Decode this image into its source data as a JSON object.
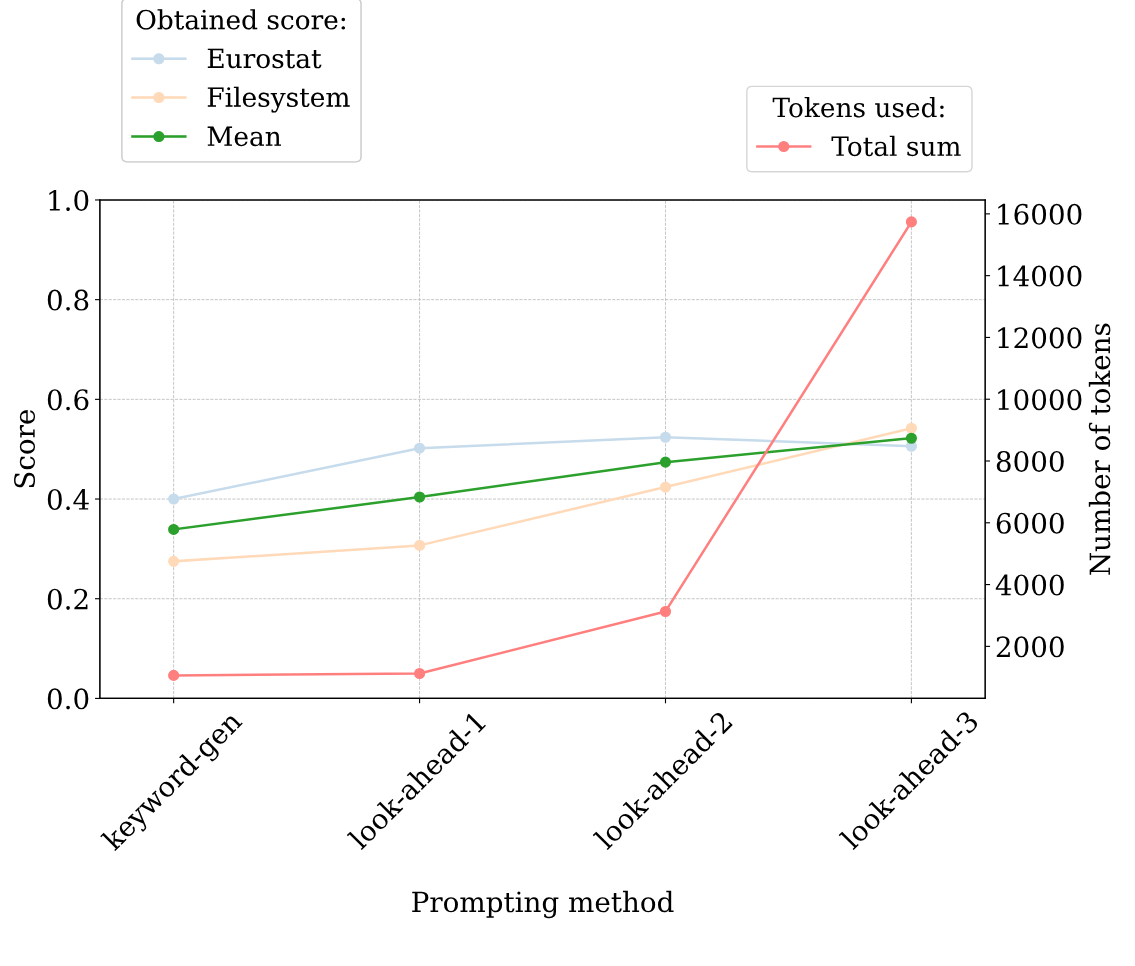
{
  "chart_data": {
    "type": "line",
    "xlabel": "Prompting method",
    "ylabel": "Score",
    "y2label": "Number of tokens",
    "categories": [
      "keyword-gen",
      "look-ahead-1",
      "look-ahead-2",
      "look-ahead-3"
    ],
    "series": [
      {
        "name": "Eurostat",
        "color": "#c6dbeb",
        "values": [
          0.4,
          0.502,
          0.524,
          0.506
        ]
      },
      {
        "name": "Filesystem",
        "color": "#ffd9b8",
        "values": [
          0.275,
          0.307,
          0.424,
          0.542
        ]
      },
      {
        "name": "Mean",
        "color": "#2ca02c",
        "values": [
          0.339,
          0.404,
          0.474,
          0.522
        ]
      },
      {
        "name": "Total sum",
        "color": "#ff7f7f",
        "axis": "y2",
        "values": [
          1060,
          1120,
          3130,
          15740
        ]
      }
    ],
    "legend_title": [
      "Obtained score:",
      "Tokens used:"
    ],
    "ylim": [
      0,
      1
    ],
    "yticks": [
      {
        "value": 0,
        "label": "0.0"
      },
      0.2,
      0.4,
      0.6,
      0.8,
      {
        "value": 1,
        "label": "1.0"
      }
    ],
    "y2lim": [
      315,
      16450
    ],
    "y2ticks": [
      2000,
      4000,
      6000,
      8000,
      10000,
      12000,
      14000,
      16000
    ],
    "grid": true,
    "legend": "top",
    "marker": "circle",
    "line_style": "solid"
  }
}
